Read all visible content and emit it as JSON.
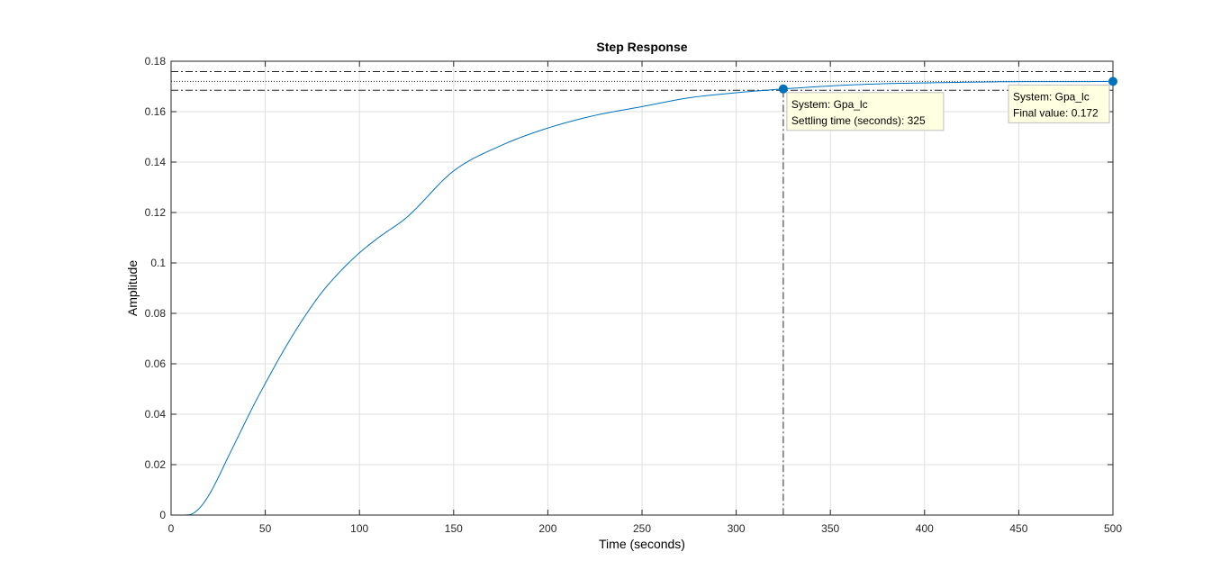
{
  "chart_data": {
    "type": "line",
    "title": "Step Response",
    "xlabel": "Time (seconds)",
    "ylabel": "Amplitude",
    "xlim": [
      0,
      500
    ],
    "ylim": [
      0,
      0.18
    ],
    "xticks": [
      0,
      50,
      100,
      150,
      200,
      250,
      300,
      350,
      400,
      450,
      500
    ],
    "yticks": [
      0,
      0.02,
      0.04,
      0.06,
      0.08,
      0.1,
      0.12,
      0.14,
      0.16,
      0.18
    ],
    "xtick_labels": [
      "0",
      "50",
      "100",
      "150",
      "200",
      "250",
      "300",
      "350",
      "400",
      "450",
      "500"
    ],
    "ytick_labels": [
      "0",
      "0.02",
      "0.04",
      "0.06",
      "0.08",
      "0.1",
      "0.12",
      "0.14",
      "0.16",
      "0.18"
    ],
    "grid": true,
    "series": [
      {
        "color": "#0072bd",
        "x": [
          0,
          5,
          10,
          15,
          20,
          25,
          30,
          35,
          40,
          45,
          50,
          60,
          70,
          80,
          90,
          100,
          110,
          125,
          150,
          175,
          200,
          225,
          250,
          275,
          300,
          325,
          350,
          375,
          400,
          425,
          450,
          475,
          500
        ],
        "y": [
          0,
          0,
          0.0002,
          0.0027,
          0.0078,
          0.0148,
          0.0226,
          0.0302,
          0.0378,
          0.0452,
          0.0522,
          0.0656,
          0.0777,
          0.0883,
          0.0968,
          0.104,
          0.11,
          0.118,
          0.1365,
          0.1465,
          0.1535,
          0.1585,
          0.162,
          0.1655,
          0.1675,
          0.169,
          0.1702,
          0.171,
          0.1714,
          0.1717,
          0.1719,
          0.1719,
          0.172
        ]
      }
    ],
    "reference_lines": {
      "final_value": 0.172,
      "upper_band": 0.1759,
      "lower_band": 0.1685,
      "settling_time": 325
    },
    "datatips": [
      {
        "x": 325,
        "y": 0.169,
        "line1": "System: Gpa_lc",
        "line2": "Settling time (seconds): 325"
      },
      {
        "x": 500,
        "y": 0.172,
        "line1": "System: Gpa_lc",
        "line2": "Final value: 0.172"
      }
    ]
  }
}
